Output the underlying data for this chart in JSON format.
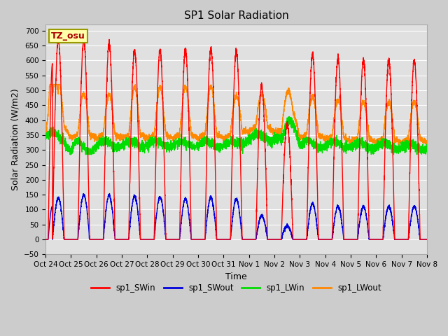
{
  "title": "SP1 Solar Radiation",
  "ylabel": "Solar Radiation (W/m2)",
  "xlabel": "Time",
  "ylim": [
    -50,
    720
  ],
  "bg_color": "#cccccc",
  "plot_bg_color": "#e0e0e0",
  "grid_color": "#ffffff",
  "colors": {
    "SWin": "#ff0000",
    "SWout": "#0000dd",
    "LWin": "#00dd00",
    "LWout": "#ff8800"
  },
  "tz_label": "TZ_osu",
  "tz_box_color": "#ffffaa",
  "tz_border_color": "#999900",
  "x_tick_labels": [
    "Oct 24",
    "Oct 25",
    "Oct 26",
    "Oct 27",
    "Oct 28",
    "Oct 29",
    "Oct 30",
    "Oct 31",
    "Nov 1",
    "Nov 2",
    "Nov 3",
    "Nov 4",
    "Nov 5",
    "Nov 6",
    "Nov 7",
    "Nov 8"
  ],
  "SWin_peaks": [
    670,
    670,
    655,
    635,
    635,
    635,
    640,
    630,
    515,
    385,
    620,
    605,
    600,
    600,
    600
  ],
  "SWout_peaks": [
    140,
    150,
    148,
    145,
    143,
    135,
    140,
    135,
    80,
    45,
    120,
    110,
    110,
    110,
    110
  ],
  "figsize": [
    6.4,
    4.8
  ],
  "dpi": 100
}
